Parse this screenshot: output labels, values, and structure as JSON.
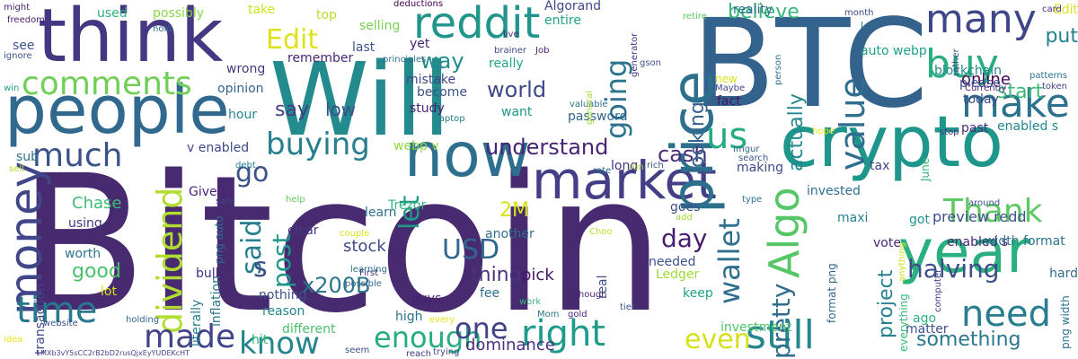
{
  "words": [
    {
      "t": "Bitcoin",
      "c": "#482a70"
    },
    {
      "t": "Will",
      "c": "#238a8d"
    },
    {
      "t": "BTC",
      "c": "#33638d"
    },
    {
      "t": "think",
      "c": "#453781"
    },
    {
      "t": "crypto",
      "c": "#1f968b"
    },
    {
      "t": "now",
      "c": "#2d6f8e"
    },
    {
      "t": "people",
      "c": "#31688e"
    },
    {
      "t": "year",
      "c": "#2ab07f"
    },
    {
      "t": "market",
      "c": "#433e85"
    },
    {
      "t": "price",
      "c": "#2d708e"
    },
    {
      "t": "many",
      "c": "#3f4788"
    },
    {
      "t": "reddit",
      "c": "#1f958b"
    },
    {
      "t": "make",
      "c": "#2c728e"
    },
    {
      "t": "buy",
      "c": "#29af7f"
    },
    {
      "t": "Algo",
      "c": "#56c667"
    },
    {
      "t": "money",
      "c": "#404688"
    },
    {
      "t": "dividend",
      "c": "#b0dd2f"
    },
    {
      "t": "still",
      "c": "#24878e"
    },
    {
      "t": "need",
      "c": "#287d8e"
    },
    {
      "t": "time",
      "c": "#2a788e"
    },
    {
      "t": "made",
      "c": "#414487"
    },
    {
      "t": "know",
      "c": "#25858e"
    },
    {
      "t": "right",
      "c": "#1e9b8a"
    },
    {
      "t": "comments",
      "c": "#70cf57"
    },
    {
      "t": "much",
      "c": "#3b518b"
    },
    {
      "t": "us",
      "c": "#25ac82"
    },
    {
      "t": "value",
      "c": "#2e6e8e"
    },
    {
      "t": "Thank",
      "c": "#5ec962"
    },
    {
      "t": "enough",
      "c": "#27ad81"
    },
    {
      "t": "one",
      "c": "#414287"
    },
    {
      "t": "even",
      "c": "#d5e21a"
    },
    {
      "t": "buying",
      "c": "#277f8e"
    },
    {
      "t": "go",
      "c": "#3b528b"
    },
    {
      "t": "let",
      "c": "#1f9a8a"
    },
    {
      "t": "said",
      "c": "#277e8e"
    },
    {
      "t": "Edit",
      "c": "#dde318"
    },
    {
      "t": "going",
      "c": "#2c738e"
    },
    {
      "t": "wallet",
      "c": "#2e6f8e"
    },
    {
      "t": "USD",
      "c": "#31678e"
    },
    {
      "t": "day",
      "c": "#481f70"
    },
    {
      "t": "pretty",
      "c": "#2f6c8e"
    },
    {
      "t": "s",
      "c": "#3c4f8a"
    },
    {
      "t": "post",
      "c": "#1f988b"
    },
    {
      "t": "halving",
      "c": "#3d4e8a"
    },
    {
      "t": "understand",
      "c": "#482475"
    },
    {
      "t": "cash",
      "c": "#472d7b"
    },
    {
      "t": "world",
      "c": "#3e4989"
    },
    {
      "t": "way",
      "c": "#228c8d"
    },
    {
      "t": "say",
      "c": "#433d84"
    },
    {
      "t": "low",
      "c": "#3d4d8a"
    },
    {
      "t": "believe",
      "c": "#35b779"
    },
    {
      "t": "x200B",
      "c": "#2b758e"
    },
    {
      "t": "something",
      "c": "#2a778e"
    },
    {
      "t": "start",
      "c": "#3aba76"
    },
    {
      "t": "project",
      "c": "#26828e"
    },
    {
      "t": "actually",
      "c": "#24878e"
    },
    {
      "t": "looking",
      "c": "#34618d"
    },
    {
      "t": "good",
      "c": "#4ac16d"
    },
    {
      "t": "thing",
      "c": "#46337e"
    },
    {
      "t": "put",
      "c": "#25838e"
    },
    {
      "t": "2M",
      "c": "#d8e219"
    },
    {
      "t": "preview redd",
      "c": "#3b528b"
    },
    {
      "t": "online",
      "c": "#440154"
    },
    {
      "t": "dominance",
      "c": "#472f7d"
    },
    {
      "t": "Chase",
      "c": "#3dbc74"
    },
    {
      "t": "stock",
      "c": "#3e4a89"
    },
    {
      "t": "pick",
      "c": "#481769"
    },
    {
      "t": "used",
      "c": "#2ab07f"
    },
    {
      "t": "possibly",
      "c": "#8bd646"
    },
    {
      "t": "selling",
      "c": "#77d153"
    },
    {
      "t": "Algorand",
      "c": "#3f4889"
    },
    {
      "t": "entire",
      "c": "#1fa287"
    },
    {
      "t": "auto webp",
      "c": "#1fa188"
    },
    {
      "t": "reality",
      "c": "#2e6d8e"
    },
    {
      "t": "blockchain",
      "c": "#23888e"
    },
    {
      "t": "please",
      "c": "#3b528b"
    },
    {
      "t": "today",
      "c": "#3e4c8a"
    },
    {
      "t": "enabled s",
      "c": "#24868e"
    },
    {
      "t": "past",
      "c": "#472a7a"
    },
    {
      "t": "fact",
      "c": "#481467"
    },
    {
      "t": "wrong",
      "c": "#453882"
    },
    {
      "t": "opinion",
      "c": "#33638d"
    },
    {
      "t": "mistake",
      "c": "#404588"
    },
    {
      "t": "study",
      "c": "#481f70"
    },
    {
      "t": "want",
      "c": "#1f968b"
    },
    {
      "t": "password",
      "c": "#31678e"
    },
    {
      "t": "hour",
      "c": "#23898e"
    },
    {
      "t": "become",
      "c": "#3b528b"
    },
    {
      "t": "really",
      "c": "#21a685"
    },
    {
      "t": "v enabled",
      "c": "#3e4989"
    },
    {
      "t": "webp v",
      "c": "#8fd744"
    },
    {
      "t": "enabled s",
      "c": "#482878"
    },
    {
      "t": "width format",
      "c": "#2c738e"
    },
    {
      "t": "vote",
      "c": "#482878"
    },
    {
      "t": "got",
      "c": "#21918c"
    },
    {
      "t": "invested",
      "c": "#2c718e"
    },
    {
      "t": "Trezor",
      "c": "#2fb47c"
    },
    {
      "t": "Given",
      "c": "#482475"
    },
    {
      "t": "using",
      "c": "#453581"
    },
    {
      "t": "worth",
      "c": "#2a768e"
    },
    {
      "t": "clear",
      "c": "#453882"
    },
    {
      "t": "another",
      "c": "#2e6e8e"
    },
    {
      "t": "bull",
      "c": "#46307e"
    },
    {
      "t": "nothing",
      "c": "#3b528b"
    },
    {
      "t": "reason",
      "c": "#25848e"
    },
    {
      "t": "different",
      "c": "#4ac16d"
    },
    {
      "t": "hit",
      "c": "#35b779"
    },
    {
      "t": "high",
      "c": "#2c728e"
    },
    {
      "t": "guys",
      "c": "#481f70"
    },
    {
      "t": "fee",
      "c": "#2d708e"
    },
    {
      "t": "keep",
      "c": "#1fa287"
    },
    {
      "t": "Ledger",
      "c": "#a0da39"
    },
    {
      "t": "needed",
      "c": "#3b528b"
    },
    {
      "t": "learn",
      "c": "#2c728e"
    },
    {
      "t": "goes",
      "c": "#3e4c8a"
    },
    {
      "t": "maxi",
      "c": "#26828e"
    },
    {
      "t": "hard",
      "c": "#2e6e8e"
    },
    {
      "t": "matter",
      "c": "#3b528b"
    },
    {
      "t": "ago",
      "c": "#2db27d"
    },
    {
      "t": "investment",
      "c": "#4ec36b"
    },
    {
      "t": "tax",
      "c": "#414487"
    },
    {
      "t": "making",
      "c": "#3f4889"
    },
    {
      "t": "long",
      "c": "#46337e"
    },
    {
      "t": "inflation",
      "c": "#2c718e"
    },
    {
      "t": "literally",
      "c": "#26828e"
    },
    {
      "t": "transaction",
      "c": "#3f4788"
    },
    {
      "t": "lot",
      "c": "#d5e21a"
    },
    {
      "t": "yet",
      "c": "#482475"
    },
    {
      "t": "last",
      "c": "#3b528b"
    },
    {
      "t": "remember",
      "c": "#482677"
    },
    {
      "t": "see",
      "c": "#3b528b"
    },
    {
      "t": "sub",
      "c": "#2c728e"
    },
    {
      "t": "Edit",
      "c": "#dde318"
    },
    {
      "t": "take",
      "c": "#cde11d"
    },
    {
      "t": "top",
      "c": "#b5de2b"
    },
    {
      "t": "might",
      "c": "#482475"
    },
    {
      "t": "freedom",
      "c": "#481a6c"
    },
    {
      "t": "hold",
      "c": "#2e6e8e"
    },
    {
      "t": "ignore",
      "c": "#3b528b"
    },
    {
      "t": "win",
      "c": "#1fa088"
    },
    {
      "t": "sell",
      "c": "#b0dd2f"
    },
    {
      "t": "idea",
      "c": "#e5e419"
    },
    {
      "t": "website",
      "c": "#3b528b"
    },
    {
      "t": "holding",
      "c": "#31688e"
    },
    {
      "t": "1MXb3vY5sCC2rB2bD2rusQjxEyYUDEKcHT",
      "c": "#414487"
    },
    {
      "t": "deductions",
      "c": "#440154"
    },
    {
      "t": "live",
      "c": "#46337e"
    },
    {
      "t": "brainer",
      "c": "#3e4989"
    },
    {
      "t": "Job",
      "c": "#482475"
    },
    {
      "t": "principles",
      "c": "#2c728e"
    },
    {
      "t": "laptop",
      "c": "#26828e"
    },
    {
      "t": "valuable",
      "c": "#2d708e"
    },
    {
      "t": "general",
      "c": "#a5db36"
    },
    {
      "t": "generator",
      "c": "#46337e"
    },
    {
      "t": "gson",
      "c": "#3b528b"
    },
    {
      "t": "retire",
      "c": "#5ec962"
    },
    {
      "t": "month",
      "c": "#3e4989"
    },
    {
      "t": "card",
      "c": "#482878"
    },
    {
      "t": "Lost",
      "c": "#2e6e8e"
    },
    {
      "t": "rather",
      "c": "#3b528b"
    },
    {
      "t": "patterns",
      "c": "#2c728e"
    },
    {
      "t": "token",
      "c": "#414487"
    },
    {
      "t": "Currently",
      "c": "#482475"
    },
    {
      "t": "Maybe",
      "c": "#3e4989"
    },
    {
      "t": "new",
      "c": "#dde318"
    },
    {
      "t": "person",
      "c": "#2e6e8e"
    },
    {
      "t": "Imgur",
      "c": "#31688e"
    },
    {
      "t": "search",
      "c": "#3b528b"
    },
    {
      "t": "hope",
      "c": "#e5e419"
    },
    {
      "t": "stop",
      "c": "#46337e"
    },
    {
      "t": "debt",
      "c": "#26828e"
    },
    {
      "t": "rate",
      "c": "#2c718e"
    },
    {
      "t": "run",
      "c": "#a0da39"
    },
    {
      "t": "rich",
      "c": "#3b528b"
    },
    {
      "t": "June",
      "c": "#35b779"
    },
    {
      "t": "around",
      "c": "#3b528b"
    },
    {
      "t": "type",
      "c": "#2c728e"
    },
    {
      "t": "add",
      "c": "#a0da39"
    },
    {
      "t": "safe",
      "c": "#414487"
    },
    {
      "t": "help",
      "c": "#5ec962"
    },
    {
      "t": "couple",
      "c": "#dde318"
    },
    {
      "t": "Choo",
      "c": "#b5de2b"
    },
    {
      "t": "First",
      "c": "#46337e"
    },
    {
      "t": "learning",
      "c": "#2e6e8e"
    },
    {
      "t": "possible",
      "c": "#31688e"
    },
    {
      "t": "computer",
      "c": "#414487"
    },
    {
      "t": "anything",
      "c": "#cde11d"
    },
    {
      "t": "tier",
      "c": "#3b528b"
    },
    {
      "t": "though",
      "c": "#482475"
    },
    {
      "t": "work",
      "c": "#35b779"
    },
    {
      "t": "Mom",
      "c": "#2c728e"
    },
    {
      "t": "gold",
      "c": "#482878"
    },
    {
      "t": "every",
      "c": "#e5e419"
    },
    {
      "t": "trying",
      "c": "#3e4989"
    },
    {
      "t": "reach",
      "c": "#46337e"
    },
    {
      "t": "seem",
      "c": "#3b528b"
    },
    {
      "t": "everything",
      "c": "#35b779"
    },
    {
      "t": "format png",
      "c": "#31688e"
    },
    {
      "t": "png width",
      "c": "#2c728e"
    },
    {
      "t": "png auto",
      "c": "#2e6e8e"
    },
    {
      "t": "real",
      "c": "#3e4989"
    }
  ]
}
